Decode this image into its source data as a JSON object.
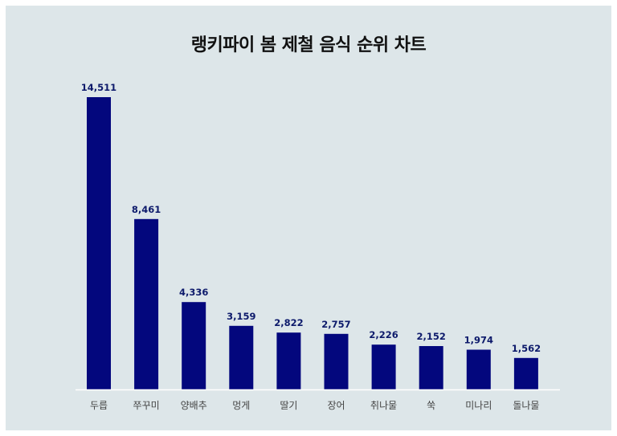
{
  "chart_data": {
    "type": "bar",
    "title": "랭키파이 봄 제철 음식 순위 차트",
    "categories": [
      "두릅",
      "쭈꾸미",
      "양배추",
      "멍게",
      "딸기",
      "장어",
      "취나물",
      "쑥",
      "미나리",
      "돌나물"
    ],
    "values": [
      14511,
      8461,
      4336,
      3159,
      2822,
      2757,
      2226,
      2152,
      1974,
      1562
    ],
    "value_labels": [
      "14,511",
      "8,461",
      "4,336",
      "3,159",
      "2,822",
      "2,757",
      "2,226",
      "2,152",
      "1,974",
      "1,562"
    ],
    "xlabel": "",
    "ylabel": "",
    "ylim": [
      0,
      14511
    ],
    "grid": false,
    "legend": "none",
    "colors": {
      "bar": "#03077d",
      "background": "#dde6e9",
      "baseline": "#ffffff",
      "value_label": "#0d1a6b"
    }
  }
}
